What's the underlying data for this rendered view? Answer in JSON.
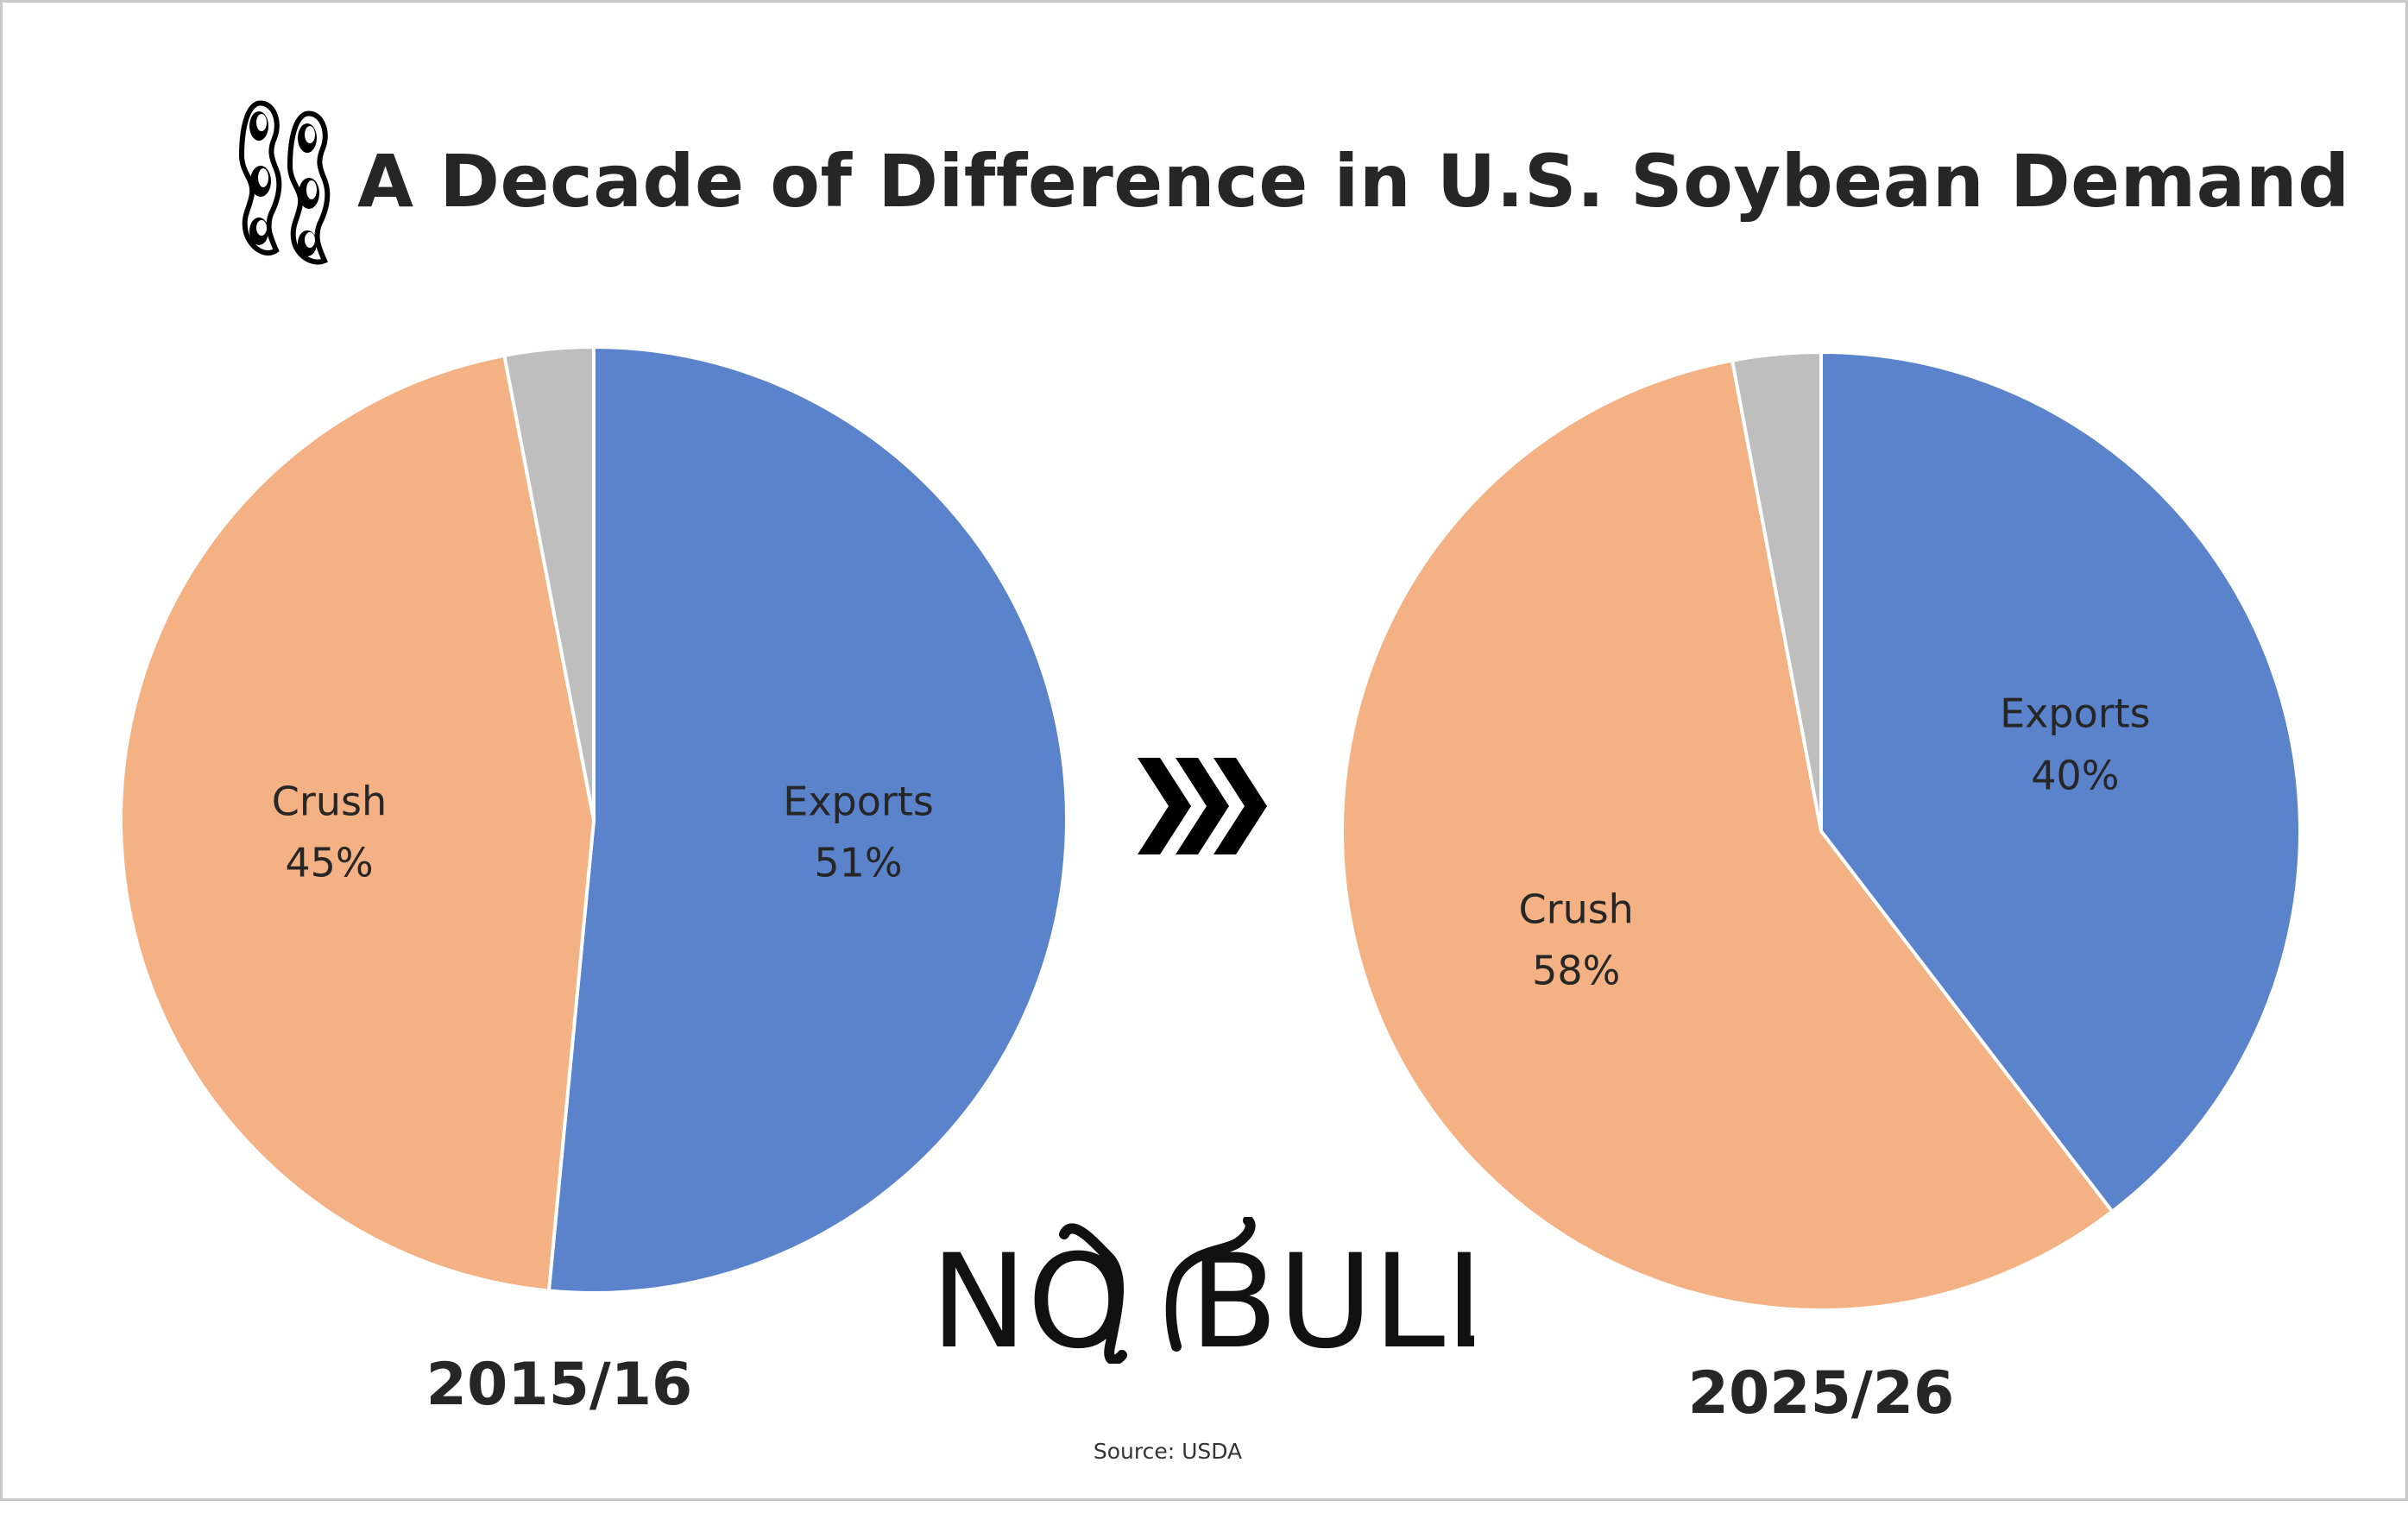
{
  "title": "A Decade of Difference in U.S. Soybean Demand",
  "source": "Source: USDA",
  "logo": {
    "text_left": "NO",
    "text_right": "BULL"
  },
  "colors": {
    "exports": "#5b83cc",
    "crush": "#f3b184",
    "other": "#bebebe",
    "slice_border": "#ffffff"
  },
  "icons": {
    "title_icon": "soybean-pod-icon",
    "transition_icon": "triple-chevron-right-icon"
  },
  "chart_data": [
    {
      "type": "pie",
      "label": "2015/16",
      "slices": [
        {
          "name": "Exports",
          "value": 51,
          "label_line1": "Exports",
          "label_line2": "51%"
        },
        {
          "name": "Crush",
          "value": 45,
          "label_line1": "Crush",
          "label_line2": "45%"
        },
        {
          "name": "Other",
          "value": 3,
          "label_line1": "",
          "label_line2": ""
        }
      ]
    },
    {
      "type": "pie",
      "label": "2025/26",
      "slices": [
        {
          "name": "Exports",
          "value": 40,
          "label_line1": "Exports",
          "label_line2": "40%"
        },
        {
          "name": "Crush",
          "value": 58,
          "label_line1": "Crush",
          "label_line2": "58%"
        },
        {
          "name": "Other",
          "value": 3,
          "label_line1": "",
          "label_line2": ""
        }
      ]
    }
  ]
}
